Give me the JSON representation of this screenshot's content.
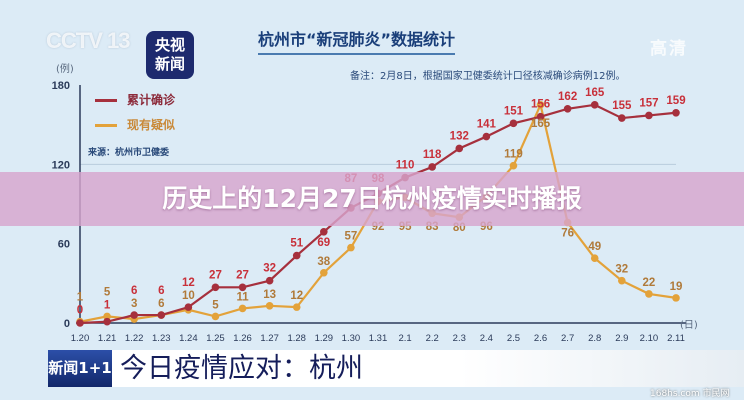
{
  "header": {
    "channel_logo": "CCTV 13",
    "app_logo_line1": "央视",
    "app_logo_line2": "新闻",
    "title": "杭州市“新冠肺炎”数据统计",
    "hd_label": "高清",
    "note": "备注：2月8日，根据国家卫健委统计口径核减确诊病例12例。"
  },
  "overlay": {
    "title": "历史上的12月27日杭州疫情实时播报"
  },
  "banner": {
    "logo": "新闻1+1",
    "text": "今日疫情应对：杭州"
  },
  "watermark": "168hs.com 市民网",
  "colors": {
    "confirmed": "#a6303d",
    "suspected": "#e3a23a",
    "background": "#dcebf6",
    "band": "#d7a5cd"
  },
  "chart_data": {
    "type": "line",
    "title": "杭州市“新冠肺炎”数据统计",
    "source": "来源：杭州市卫健委",
    "ylabel": "(例)",
    "xlabel": "(日)",
    "ylim": [
      0,
      180
    ],
    "yticks": [
      "0",
      "60",
      "120",
      "180"
    ],
    "grid": "horizontal line at 120",
    "legend_position": "top-left",
    "categories": [
      "1.20",
      "1.21",
      "1.22",
      "1.23",
      "1.24",
      "1.25",
      "1.26",
      "1.27",
      "1.28",
      "1.29",
      "1.30",
      "1.31",
      "2.1",
      "2.2",
      "2.3",
      "2.4",
      "2.5",
      "2.6",
      "2.7",
      "2.8",
      "2.9",
      "2.10",
      "2.11"
    ],
    "series": [
      {
        "name": "累计确诊",
        "values": [
          0,
          1,
          6,
          6,
          12,
          27,
          27,
          32,
          51,
          69,
          87,
          98,
          110,
          118,
          132,
          141,
          151,
          156,
          162,
          165,
          155,
          157,
          159
        ]
      },
      {
        "name": "现有疑似",
        "values": [
          1,
          5,
          3,
          6,
          10,
          5,
          11,
          13,
          12,
          38,
          57,
          92,
          95,
          83,
          80,
          96,
          119,
          165,
          76,
          49,
          32,
          22,
          19
        ]
      }
    ]
  }
}
